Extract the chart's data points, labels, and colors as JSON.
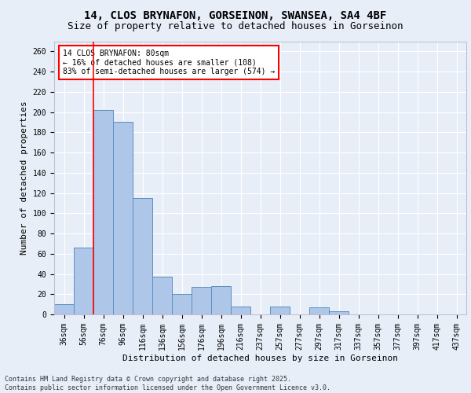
{
  "title_line1": "14, CLOS BRYNAFON, GORSEINON, SWANSEA, SA4 4BF",
  "title_line2": "Size of property relative to detached houses in Gorseinon",
  "xlabel": "Distribution of detached houses by size in Gorseinon",
  "ylabel": "Number of detached properties",
  "categories": [
    "36sqm",
    "56sqm",
    "76sqm",
    "96sqm",
    "116sqm",
    "136sqm",
    "156sqm",
    "176sqm",
    "196sqm",
    "216sqm",
    "237sqm",
    "257sqm",
    "277sqm",
    "297sqm",
    "317sqm",
    "337sqm",
    "357sqm",
    "377sqm",
    "397sqm",
    "417sqm",
    "437sqm"
  ],
  "values": [
    10,
    66,
    202,
    190,
    115,
    37,
    20,
    27,
    28,
    8,
    0,
    8,
    0,
    7,
    3,
    0,
    0,
    0,
    0,
    0,
    0
  ],
  "bar_color": "#aec6e8",
  "bar_edge_color": "#5a8fc2",
  "annotation_text": "14 CLOS BRYNAFON: 80sqm\n← 16% of detached houses are smaller (108)\n83% of semi-detached houses are larger (574) →",
  "vline_x": 1.5,
  "background_color": "#e8eef8",
  "plot_bg_color": "#e8eef8",
  "grid_color": "#ffffff",
  "footer_text": "Contains HM Land Registry data © Crown copyright and database right 2025.\nContains public sector information licensed under the Open Government Licence v3.0.",
  "title_fontsize": 10,
  "subtitle_fontsize": 9,
  "axis_label_fontsize": 8,
  "tick_fontsize": 7,
  "ylim": [
    0,
    270
  ],
  "yticks": [
    0,
    20,
    40,
    60,
    80,
    100,
    120,
    140,
    160,
    180,
    200,
    220,
    240,
    260
  ]
}
